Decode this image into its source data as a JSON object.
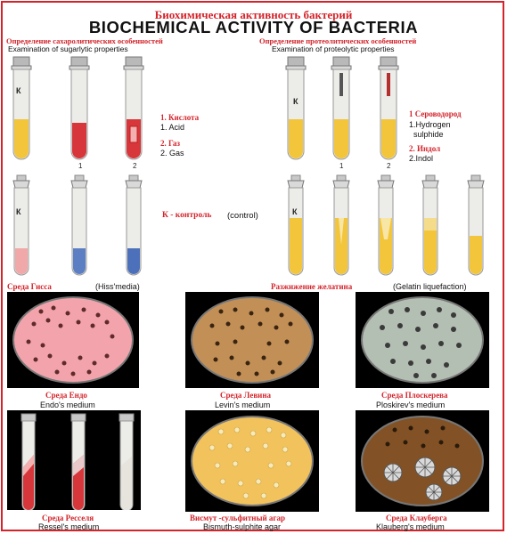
{
  "title": {
    "ru": "Биохимическая активность бактерий",
    "en": "BIOCHEMICAL ACTIVITY OF BACTERIA"
  },
  "sugar": {
    "heading_ru": "Определение сахаролитических особенностей",
    "heading_en": "Examination of sugarlytic properties",
    "control_label": "К",
    "num1": "1",
    "num2": "2",
    "acid_ru": "1. Кислота",
    "acid_en": "1. Acid",
    "gas_ru": "2. Газ",
    "gas_en": "2. Gas",
    "control_ru": "К - контроль",
    "control_en": "(control)",
    "hiss_ru": "Среда Гисса",
    "hiss_en": "(Hiss'media)"
  },
  "proteo": {
    "heading_ru": "Определение протеолитических особенностей",
    "heading_en": "Examination of proteolytic properties",
    "control_label": "К",
    "num1": "1",
    "num2": "2",
    "h2s_ru": "1  Сероводород",
    "h2s_en_1": "1.Hydrogen",
    "h2s_en_2": "sulphide",
    "indol_ru": "2. Индол",
    "indol_en": "2.Indol",
    "gelatin_ru": "Разжижение желатина",
    "gelatin_en": "(Gelatin liquefaction)"
  },
  "media": {
    "endo": {
      "ru": "Среда Ендо",
      "en": "Endo's medium"
    },
    "levin": {
      "ru": "Среда Левина",
      "en": "Levin's medium"
    },
    "ploskirev": {
      "ru": "Среда Плоскерева",
      "en": "Ploskirev's medium"
    },
    "ressel": {
      "ru": "Среда Ресселя",
      "en": "Ressel's medium"
    },
    "bismuth": {
      "ru": "Висмут -сульфитный агар",
      "en": "Bismuth-sulphite agar"
    },
    "klauberg": {
      "ru": "Среда Клауберга",
      "en": "Klauberg's medium"
    }
  },
  "colors": {
    "frame": "#d3242b",
    "label_red": "#d3242b",
    "yellow_medium": "#f2c53b",
    "endo_agar": "#f3a3ab",
    "levin_agar": "#c29057",
    "ploskirev_agar": "#b3bfb3",
    "bismuth_agar": "#f2c25c",
    "klauberg_agar": "#825226"
  }
}
